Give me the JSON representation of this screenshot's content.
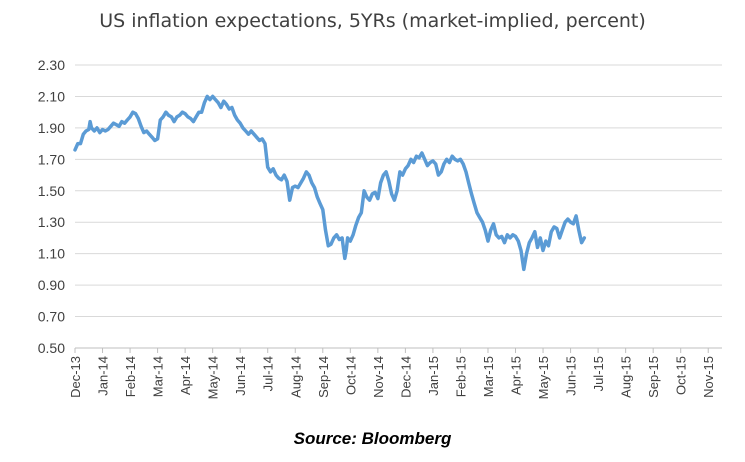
{
  "chart_data": {
    "type": "line",
    "title": "US inflation expectations, 5YRs (market-implied, percent)",
    "xlabel": "",
    "ylabel": "",
    "ylim": [
      0.5,
      2.3
    ],
    "yticks": [
      "0.50",
      "0.70",
      "0.90",
      "1.10",
      "1.30",
      "1.50",
      "1.70",
      "1.90",
      "2.10",
      "2.30"
    ],
    "categories": [
      "Dec-13",
      "Jan-14",
      "Feb-14",
      "Mar-14",
      "Apr-14",
      "May-14",
      "Jun-14",
      "Jul-14",
      "Aug-14",
      "Sep-14",
      "Oct-14",
      "Nov-14",
      "Dec-14",
      "Jan-15",
      "Feb-15",
      "Mar-15",
      "Apr-15",
      "May-15",
      "Jun-15",
      "Jul-15",
      "Aug-15",
      "Sep-15",
      "Oct-15",
      "Nov-15"
    ],
    "grid": true,
    "legend": "none",
    "line_color": "#5b9bd5",
    "series": [
      {
        "values": [
          [
            0,
            1.76
          ],
          [
            0.1,
            1.8
          ],
          [
            0.2,
            1.8
          ],
          [
            0.3,
            1.86
          ],
          [
            0.4,
            1.88
          ],
          [
            0.5,
            1.89
          ],
          [
            0.55,
            1.94
          ],
          [
            0.6,
            1.9
          ],
          [
            0.7,
            1.88
          ],
          [
            0.8,
            1.9
          ],
          [
            0.9,
            1.87
          ],
          [
            1.0,
            1.89
          ],
          [
            1.1,
            1.88
          ],
          [
            1.2,
            1.89
          ],
          [
            1.3,
            1.91
          ],
          [
            1.4,
            1.93
          ],
          [
            1.5,
            1.92
          ],
          [
            1.6,
            1.91
          ],
          [
            1.7,
            1.94
          ],
          [
            1.8,
            1.93
          ],
          [
            1.9,
            1.95
          ],
          [
            2.0,
            1.97
          ],
          [
            2.1,
            2.0
          ],
          [
            2.2,
            1.99
          ],
          [
            2.3,
            1.96
          ],
          [
            2.4,
            1.91
          ],
          [
            2.5,
            1.87
          ],
          [
            2.6,
            1.88
          ],
          [
            2.7,
            1.86
          ],
          [
            2.8,
            1.84
          ],
          [
            2.9,
            1.82
          ],
          [
            3.0,
            1.83
          ],
          [
            3.1,
            1.95
          ],
          [
            3.2,
            1.97
          ],
          [
            3.3,
            2.0
          ],
          [
            3.4,
            1.98
          ],
          [
            3.5,
            1.97
          ],
          [
            3.6,
            1.94
          ],
          [
            3.7,
            1.97
          ],
          [
            3.8,
            1.98
          ],
          [
            3.9,
            2.0
          ],
          [
            4.0,
            1.99
          ],
          [
            4.1,
            1.97
          ],
          [
            4.2,
            1.96
          ],
          [
            4.3,
            1.94
          ],
          [
            4.4,
            1.97
          ],
          [
            4.5,
            2.0
          ],
          [
            4.6,
            2.0
          ],
          [
            4.7,
            2.06
          ],
          [
            4.8,
            2.1
          ],
          [
            4.9,
            2.08
          ],
          [
            5.0,
            2.1
          ],
          [
            5.1,
            2.08
          ],
          [
            5.2,
            2.06
          ],
          [
            5.3,
            2.03
          ],
          [
            5.4,
            2.07
          ],
          [
            5.5,
            2.05
          ],
          [
            5.6,
            2.02
          ],
          [
            5.7,
            2.03
          ],
          [
            5.8,
            1.98
          ],
          [
            5.9,
            1.95
          ],
          [
            6.0,
            1.93
          ],
          [
            6.1,
            1.9
          ],
          [
            6.2,
            1.88
          ],
          [
            6.3,
            1.86
          ],
          [
            6.4,
            1.88
          ],
          [
            6.5,
            1.86
          ],
          [
            6.6,
            1.84
          ],
          [
            6.7,
            1.82
          ],
          [
            6.8,
            1.83
          ],
          [
            6.9,
            1.8
          ],
          [
            7.0,
            1.65
          ],
          [
            7.1,
            1.62
          ],
          [
            7.2,
            1.64
          ],
          [
            7.3,
            1.6
          ],
          [
            7.4,
            1.58
          ],
          [
            7.5,
            1.57
          ],
          [
            7.6,
            1.6
          ],
          [
            7.7,
            1.56
          ],
          [
            7.8,
            1.44
          ],
          [
            7.9,
            1.52
          ],
          [
            8.0,
            1.53
          ],
          [
            8.1,
            1.52
          ],
          [
            8.2,
            1.55
          ],
          [
            8.3,
            1.58
          ],
          [
            8.4,
            1.62
          ],
          [
            8.5,
            1.6
          ],
          [
            8.6,
            1.55
          ],
          [
            8.7,
            1.52
          ],
          [
            8.8,
            1.46
          ],
          [
            8.9,
            1.42
          ],
          [
            9.0,
            1.38
          ],
          [
            9.1,
            1.25
          ],
          [
            9.2,
            1.15
          ],
          [
            9.3,
            1.16
          ],
          [
            9.4,
            1.2
          ],
          [
            9.5,
            1.22
          ],
          [
            9.6,
            1.19
          ],
          [
            9.7,
            1.2
          ],
          [
            9.8,
            1.07
          ],
          [
            9.85,
            1.12
          ],
          [
            9.9,
            1.2
          ],
          [
            10.0,
            1.18
          ],
          [
            10.1,
            1.22
          ],
          [
            10.2,
            1.28
          ],
          [
            10.3,
            1.33
          ],
          [
            10.4,
            1.36
          ],
          [
            10.5,
            1.5
          ],
          [
            10.6,
            1.46
          ],
          [
            10.7,
            1.44
          ],
          [
            10.8,
            1.48
          ],
          [
            10.9,
            1.49
          ],
          [
            11.0,
            1.45
          ],
          [
            11.1,
            1.55
          ],
          [
            11.2,
            1.6
          ],
          [
            11.3,
            1.62
          ],
          [
            11.4,
            1.56
          ],
          [
            11.5,
            1.48
          ],
          [
            11.6,
            1.44
          ],
          [
            11.7,
            1.5
          ],
          [
            11.8,
            1.62
          ],
          [
            11.9,
            1.6
          ],
          [
            12.0,
            1.64
          ],
          [
            12.1,
            1.66
          ],
          [
            12.2,
            1.7
          ],
          [
            12.3,
            1.68
          ],
          [
            12.4,
            1.72
          ],
          [
            12.5,
            1.71
          ],
          [
            12.6,
            1.74
          ],
          [
            12.7,
            1.7
          ],
          [
            12.8,
            1.66
          ],
          [
            12.9,
            1.68
          ],
          [
            13.0,
            1.69
          ],
          [
            13.1,
            1.67
          ],
          [
            13.2,
            1.6
          ],
          [
            13.3,
            1.62
          ],
          [
            13.4,
            1.67
          ],
          [
            13.5,
            1.7
          ],
          [
            13.6,
            1.68
          ],
          [
            13.7,
            1.72
          ],
          [
            13.8,
            1.7
          ],
          [
            13.9,
            1.69
          ],
          [
            14.0,
            1.7
          ],
          [
            14.1,
            1.67
          ],
          [
            14.2,
            1.62
          ],
          [
            14.3,
            1.55
          ],
          [
            14.4,
            1.48
          ],
          [
            14.5,
            1.42
          ],
          [
            14.6,
            1.36
          ],
          [
            14.7,
            1.33
          ],
          [
            14.8,
            1.3
          ],
          [
            14.9,
            1.25
          ],
          [
            15.0,
            1.18
          ],
          [
            15.1,
            1.25
          ],
          [
            15.2,
            1.29
          ],
          [
            15.3,
            1.22
          ],
          [
            15.4,
            1.2
          ],
          [
            15.5,
            1.21
          ],
          [
            15.6,
            1.17
          ],
          [
            15.7,
            1.22
          ],
          [
            15.8,
            1.2
          ],
          [
            15.9,
            1.22
          ],
          [
            16.0,
            1.21
          ],
          [
            16.1,
            1.18
          ],
          [
            16.2,
            1.12
          ],
          [
            16.3,
            1.0
          ],
          [
            16.4,
            1.1
          ],
          [
            16.5,
            1.17
          ],
          [
            16.6,
            1.2
          ],
          [
            16.7,
            1.24
          ],
          [
            16.8,
            1.14
          ],
          [
            16.9,
            1.2
          ],
          [
            17.0,
            1.12
          ],
          [
            17.1,
            1.18
          ],
          [
            17.2,
            1.15
          ],
          [
            17.3,
            1.24
          ],
          [
            17.4,
            1.27
          ],
          [
            17.5,
            1.26
          ],
          [
            17.6,
            1.2
          ],
          [
            17.7,
            1.25
          ],
          [
            17.8,
            1.3
          ],
          [
            17.9,
            1.32
          ],
          [
            18.0,
            1.3
          ],
          [
            18.1,
            1.29
          ],
          [
            18.2,
            1.34
          ],
          [
            18.3,
            1.25
          ],
          [
            18.4,
            1.17
          ],
          [
            18.5,
            1.2
          ]
        ]
      }
    ]
  },
  "footer": {
    "source": "Source: Bloomberg"
  }
}
